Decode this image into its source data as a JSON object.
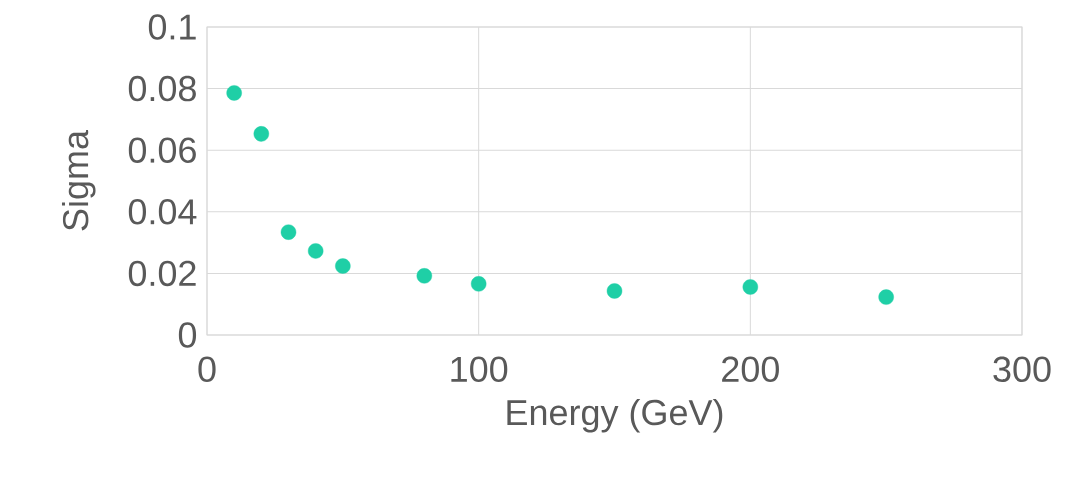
{
  "chart_data": {
    "type": "scatter",
    "xlabel": "Energy (GeV)",
    "ylabel": "Sigma",
    "x": [
      10,
      20,
      30,
      40,
      50,
      80,
      100,
      150,
      200,
      250
    ],
    "values": [
      0.0786,
      0.0653,
      0.0334,
      0.0273,
      0.0224,
      0.0192,
      0.0166,
      0.0143,
      0.0156,
      0.0123
    ],
    "color": "#1fcfa6",
    "marker": "circle",
    "xlim": [
      0,
      300
    ],
    "xticks": [
      0,
      100,
      200,
      300
    ],
    "ylim": [
      0,
      0.1
    ],
    "yticks": [
      0,
      0.02,
      0.04,
      0.06,
      0.08,
      0.1
    ],
    "grid": true
  }
}
